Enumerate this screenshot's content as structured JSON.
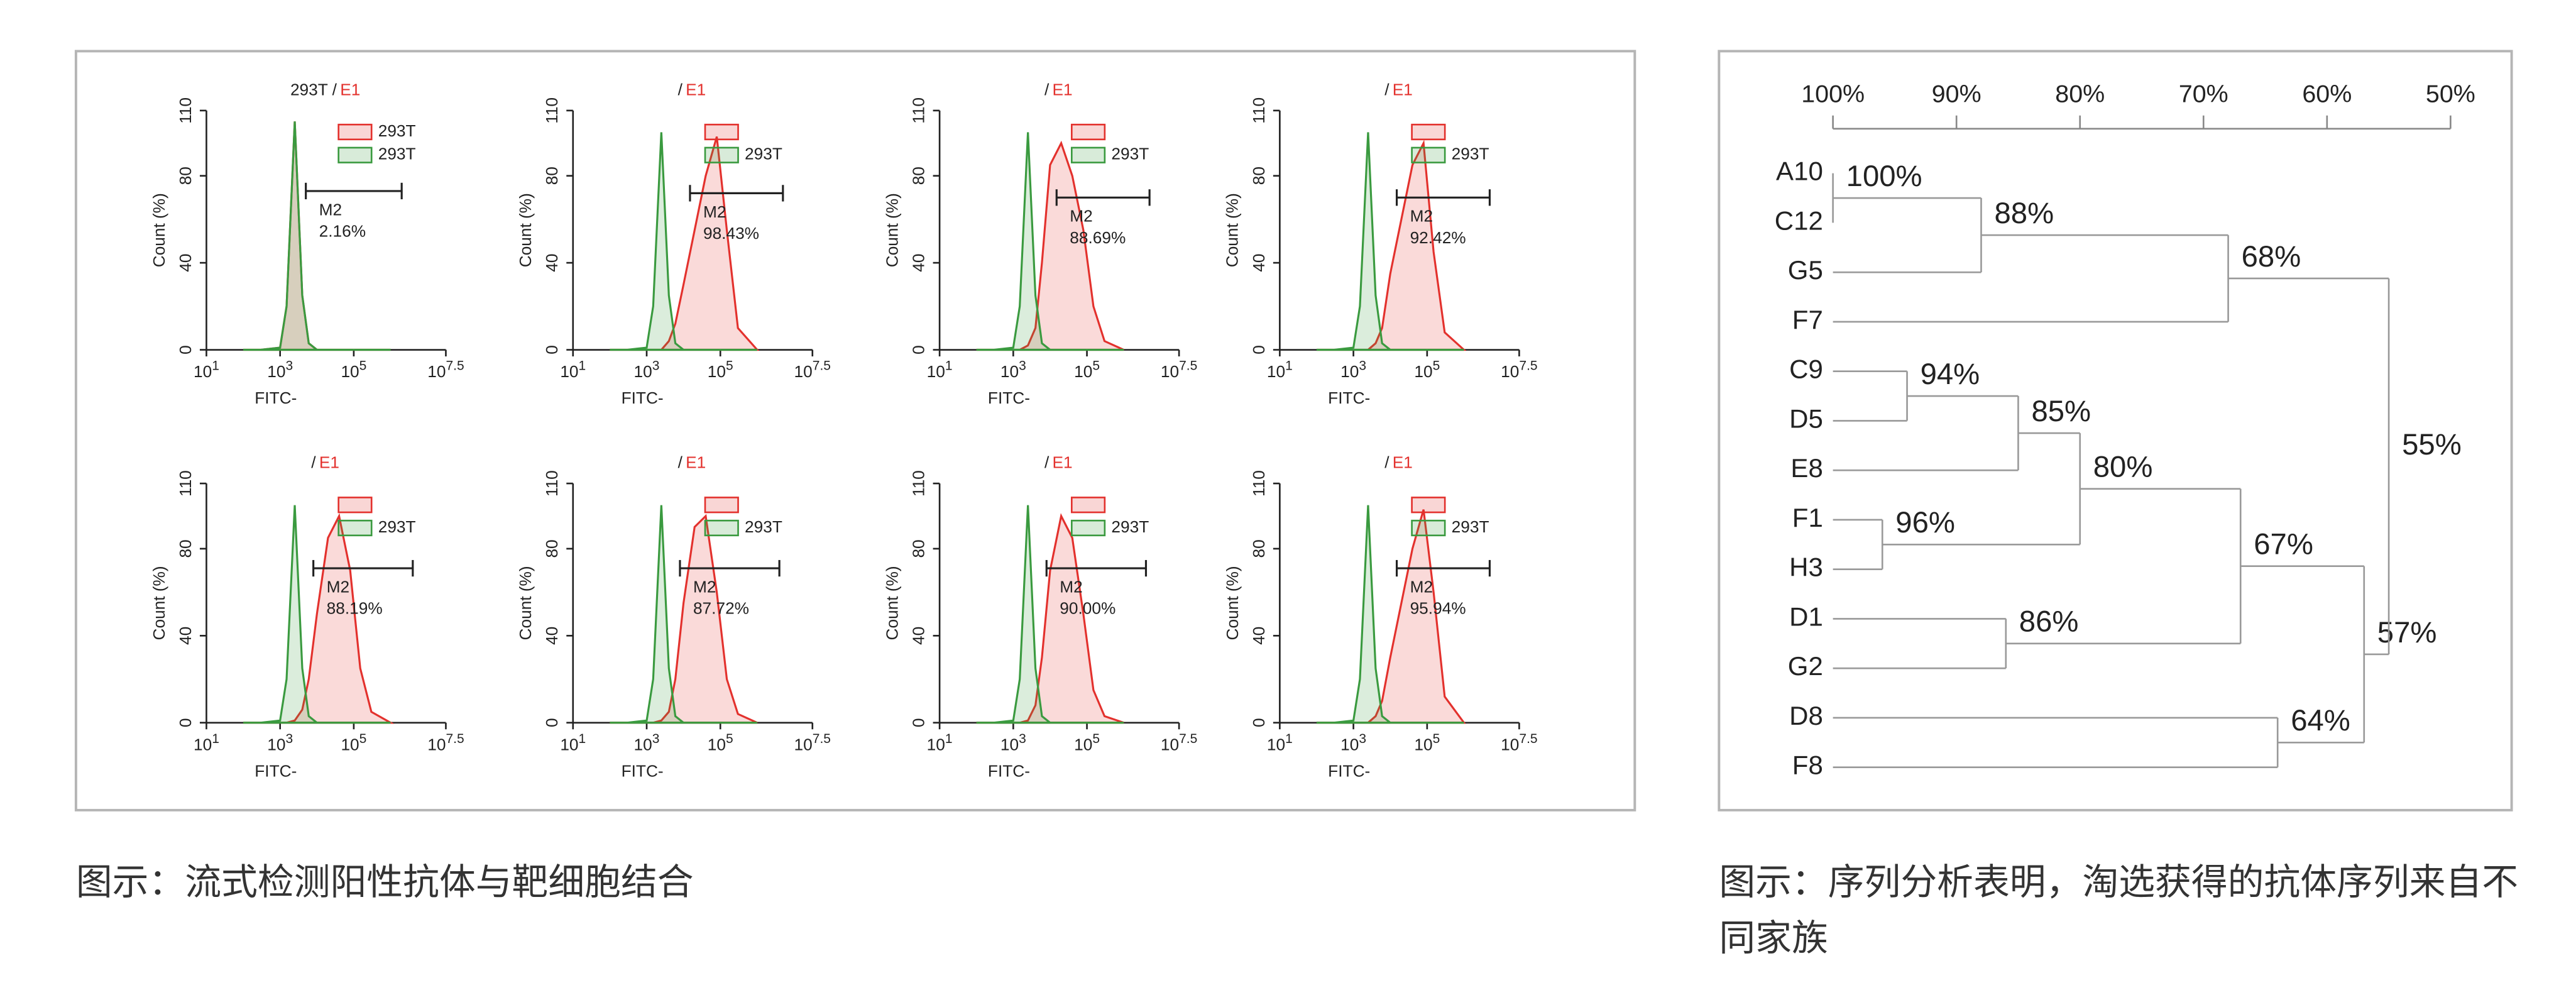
{
  "chart_data": [
    {
      "type": "histogram",
      "title": {
        "text": "293T /",
        "highlight": "E1"
      },
      "y_label": "Count (%)",
      "x_label": "FITC-",
      "log_x": true,
      "xlim": [
        10,
        31622776.6
      ],
      "xticks": [
        {
          "value": 10,
          "label": "10",
          "exponent": "1"
        },
        {
          "value": 1000,
          "label": "10",
          "exponent": "3"
        },
        {
          "value": 100000,
          "label": "10",
          "exponent": "5"
        },
        {
          "value": 31622776.6,
          "label": "10",
          "exponent": "7.5"
        }
      ],
      "ylim": [
        0,
        110
      ],
      "yticks": [
        0,
        40,
        80,
        110
      ],
      "x": [
        100,
        300,
        1000,
        1500,
        2500,
        4000,
        6000,
        10000,
        20000,
        40000,
        80000,
        150000,
        300000,
        1000000
      ],
      "series": [
        {
          "name": "293T",
          "color": "#e3312d",
          "values": [
            0,
            0,
            1,
            20,
            105,
            25,
            3,
            0,
            0,
            0,
            0,
            0,
            0,
            0
          ]
        },
        {
          "name": "293T",
          "color": "#3a9a3f",
          "values": [
            0,
            0,
            1,
            20,
            105,
            25,
            3,
            0,
            0,
            0,
            0,
            0,
            0,
            0
          ]
        }
      ],
      "gate": {
        "name": "M2",
        "x": [
          5000,
          2000000
        ],
        "y": 73,
        "value": 2.16,
        "value_label": "2.16%"
      }
    },
    {
      "type": "histogram",
      "title": {
        "text": "/",
        "highlight": "E1"
      },
      "y_label": "Count (%)",
      "x_label": "FITC-",
      "log_x": true,
      "xlim": [
        10,
        31622776.6
      ],
      "xticks": [
        {
          "value": 10,
          "label": "10",
          "exponent": "1"
        },
        {
          "value": 1000,
          "label": "10",
          "exponent": "3"
        },
        {
          "value": 100000,
          "label": "10",
          "exponent": "5"
        },
        {
          "value": 31622776.6,
          "label": "10",
          "exponent": "7.5"
        }
      ],
      "ylim": [
        0,
        110
      ],
      "yticks": [
        0,
        40,
        80,
        110
      ],
      "x": [
        100,
        300,
        1000,
        1500,
        2500,
        4000,
        6000,
        10000,
        20000,
        40000,
        80000,
        150000,
        300000,
        1000000
      ],
      "series": [
        {
          "name": null,
          "color": "#e3312d",
          "values": [
            0,
            0,
            0,
            0,
            0,
            4,
            12,
            30,
            55,
            80,
            98,
            55,
            10,
            0
          ]
        },
        {
          "name": "293T",
          "color": "#3a9a3f",
          "values": [
            0,
            0,
            1,
            20,
            100,
            25,
            3,
            0,
            0,
            0,
            0,
            0,
            0,
            0
          ]
        }
      ],
      "gate": {
        "name": "M2",
        "x": [
          15000,
          5000000
        ],
        "y": 72,
        "value": 98.43,
        "value_label": "98.43%"
      }
    },
    {
      "type": "histogram",
      "title": {
        "text": "/",
        "highlight": "E1"
      },
      "y_label": "Count (%)",
      "x_label": "FITC-",
      "log_x": true,
      "xlim": [
        10,
        31622776.6
      ],
      "xticks": [
        {
          "value": 10,
          "label": "10",
          "exponent": "1"
        },
        {
          "value": 1000,
          "label": "10",
          "exponent": "3"
        },
        {
          "value": 100000,
          "label": "10",
          "exponent": "5"
        },
        {
          "value": 31622776.6,
          "label": "10",
          "exponent": "7.5"
        }
      ],
      "ylim": [
        0,
        110
      ],
      "yticks": [
        0,
        40,
        80,
        110
      ],
      "x": [
        100,
        300,
        1000,
        1500,
        2500,
        4000,
        6000,
        10000,
        20000,
        40000,
        80000,
        150000,
        300000,
        1000000
      ],
      "series": [
        {
          "name": null,
          "color": "#e3312d",
          "values": [
            0,
            0,
            0,
            0,
            2,
            10,
            40,
            85,
            95,
            80,
            55,
            20,
            4,
            0
          ]
        },
        {
          "name": "293T",
          "color": "#3a9a3f",
          "values": [
            0,
            0,
            1,
            20,
            100,
            25,
            3,
            0,
            0,
            0,
            0,
            0,
            0,
            0
          ]
        }
      ],
      "gate": {
        "name": "M2",
        "x": [
          15000,
          5000000
        ],
        "y": 70,
        "value": 88.69,
        "value_label": "88.69%"
      }
    },
    {
      "type": "histogram",
      "title": {
        "text": "/",
        "highlight": "E1"
      },
      "y_label": "Count (%)",
      "x_label": "FITC-",
      "log_x": true,
      "xlim": [
        10,
        31622776.6
      ],
      "xticks": [
        {
          "value": 10,
          "label": "10",
          "exponent": "1"
        },
        {
          "value": 1000,
          "label": "10",
          "exponent": "3"
        },
        {
          "value": 100000,
          "label": "10",
          "exponent": "5"
        },
        {
          "value": 31622776.6,
          "label": "10",
          "exponent": "7.5"
        }
      ],
      "ylim": [
        0,
        110
      ],
      "yticks": [
        0,
        40,
        80,
        110
      ],
      "x": [
        100,
        300,
        1000,
        1500,
        2500,
        4000,
        6000,
        10000,
        20000,
        40000,
        80000,
        150000,
        300000,
        1000000
      ],
      "series": [
        {
          "name": null,
          "color": "#e3312d",
          "values": [
            0,
            0,
            0,
            0,
            0,
            3,
            10,
            35,
            60,
            85,
            95,
            45,
            8,
            0
          ]
        },
        {
          "name": "293T",
          "color": "#3a9a3f",
          "values": [
            0,
            0,
            1,
            20,
            100,
            25,
            3,
            0,
            0,
            0,
            0,
            0,
            0,
            0
          ]
        }
      ],
      "gate": {
        "name": "M2",
        "x": [
          15000,
          5000000
        ],
        "y": 70,
        "value": 92.42,
        "value_label": "92.42%"
      }
    },
    {
      "type": "histogram",
      "title": {
        "text": "/",
        "highlight": "E1"
      },
      "y_label": "Count (%)",
      "x_label": "FITC-",
      "log_x": true,
      "xlim": [
        10,
        31622776.6
      ],
      "xticks": [
        {
          "value": 10,
          "label": "10",
          "exponent": "1"
        },
        {
          "value": 1000,
          "label": "10",
          "exponent": "3"
        },
        {
          "value": 100000,
          "label": "10",
          "exponent": "5"
        },
        {
          "value": 31622776.6,
          "label": "10",
          "exponent": "7.5"
        }
      ],
      "ylim": [
        0,
        110
      ],
      "yticks": [
        0,
        40,
        80,
        110
      ],
      "x": [
        100,
        300,
        1000,
        1500,
        2500,
        4000,
        6000,
        10000,
        20000,
        40000,
        80000,
        150000,
        300000,
        1000000
      ],
      "series": [
        {
          "name": null,
          "color": "#e3312d",
          "values": [
            0,
            0,
            0,
            0,
            1,
            6,
            20,
            50,
            85,
            95,
            70,
            25,
            5,
            0
          ]
        },
        {
          "name": "293T",
          "color": "#3a9a3f",
          "values": [
            0,
            0,
            1,
            20,
            100,
            25,
            3,
            0,
            0,
            0,
            0,
            0,
            0,
            0
          ]
        }
      ],
      "gate": {
        "name": "M2",
        "x": [
          8000,
          4000000
        ],
        "y": 71,
        "value": 88.19,
        "value_label": "88.19%"
      }
    },
    {
      "type": "histogram",
      "title": {
        "text": "/",
        "highlight": "E1"
      },
      "y_label": "Count (%)",
      "x_label": "FITC-",
      "log_x": true,
      "xlim": [
        10,
        31622776.6
      ],
      "xticks": [
        {
          "value": 10,
          "label": "10",
          "exponent": "1"
        },
        {
          "value": 1000,
          "label": "10",
          "exponent": "3"
        },
        {
          "value": 100000,
          "label": "10",
          "exponent": "5"
        },
        {
          "value": 31622776.6,
          "label": "10",
          "exponent": "7.5"
        }
      ],
      "ylim": [
        0,
        110
      ],
      "yticks": [
        0,
        40,
        80,
        110
      ],
      "x": [
        100,
        300,
        1000,
        1500,
        2500,
        4000,
        6000,
        10000,
        20000,
        40000,
        80000,
        150000,
        300000,
        1000000
      ],
      "series": [
        {
          "name": null,
          "color": "#e3312d",
          "values": [
            0,
            0,
            0,
            0,
            1,
            5,
            20,
            55,
            90,
            95,
            60,
            20,
            4,
            0
          ]
        },
        {
          "name": "293T",
          "color": "#3a9a3f",
          "values": [
            0,
            0,
            1,
            20,
            100,
            25,
            3,
            0,
            0,
            0,
            0,
            0,
            0,
            0
          ]
        }
      ],
      "gate": {
        "name": "M2",
        "x": [
          8000,
          4000000
        ],
        "y": 71,
        "value": 87.72,
        "value_label": "87.72%"
      }
    },
    {
      "type": "histogram",
      "title": {
        "text": "/",
        "highlight": "E1"
      },
      "y_label": "Count (%)",
      "x_label": "FITC-",
      "log_x": true,
      "xlim": [
        10,
        31622776.6
      ],
      "xticks": [
        {
          "value": 10,
          "label": "10",
          "exponent": "1"
        },
        {
          "value": 1000,
          "label": "10",
          "exponent": "3"
        },
        {
          "value": 100000,
          "label": "10",
          "exponent": "5"
        },
        {
          "value": 31622776.6,
          "label": "10",
          "exponent": "7.5"
        }
      ],
      "ylim": [
        0,
        110
      ],
      "yticks": [
        0,
        40,
        80,
        110
      ],
      "x": [
        100,
        300,
        1000,
        1500,
        2500,
        4000,
        6000,
        10000,
        20000,
        40000,
        80000,
        150000,
        300000,
        1000000
      ],
      "series": [
        {
          "name": null,
          "color": "#e3312d",
          "values": [
            0,
            0,
            0,
            0,
            1,
            8,
            30,
            70,
            95,
            85,
            50,
            15,
            3,
            0
          ]
        },
        {
          "name": "293T",
          "color": "#3a9a3f",
          "values": [
            0,
            0,
            1,
            20,
            100,
            25,
            3,
            0,
            0,
            0,
            0,
            0,
            0,
            0
          ]
        }
      ],
      "gate": {
        "name": "M2",
        "x": [
          8000,
          4000000
        ],
        "y": 71,
        "value": 90.0,
        "value_label": "90.00%"
      }
    },
    {
      "type": "histogram",
      "title": {
        "text": "/",
        "highlight": "E1"
      },
      "y_label": "Count (%)",
      "x_label": "FITC-",
      "log_x": true,
      "xlim": [
        10,
        31622776.6
      ],
      "xticks": [
        {
          "value": 10,
          "label": "10",
          "exponent": "1"
        },
        {
          "value": 1000,
          "label": "10",
          "exponent": "3"
        },
        {
          "value": 100000,
          "label": "10",
          "exponent": "5"
        },
        {
          "value": 31622776.6,
          "label": "10",
          "exponent": "7.5"
        }
      ],
      "ylim": [
        0,
        110
      ],
      "yticks": [
        0,
        40,
        80,
        110
      ],
      "x": [
        100,
        300,
        1000,
        1500,
        2500,
        4000,
        6000,
        10000,
        20000,
        40000,
        80000,
        150000,
        300000,
        1000000
      ],
      "series": [
        {
          "name": null,
          "color": "#e3312d",
          "values": [
            0,
            0,
            0,
            0,
            0,
            3,
            10,
            30,
            55,
            80,
            98,
            60,
            12,
            0
          ]
        },
        {
          "name": "293T",
          "color": "#3a9a3f",
          "values": [
            0,
            0,
            1,
            20,
            100,
            25,
            3,
            0,
            0,
            0,
            0,
            0,
            0,
            0
          ]
        }
      ],
      "gate": {
        "name": "M2",
        "x": [
          15000,
          5000000
        ],
        "y": 71,
        "value": 95.94,
        "value_label": "95.94%"
      }
    },
    {
      "type": "dendrogram",
      "xlim": [
        100,
        50
      ],
      "xticks": [
        {
          "value": 100,
          "label": "100%"
        },
        {
          "value": 90,
          "label": "90%"
        },
        {
          "value": 80,
          "label": "80%"
        },
        {
          "value": 70,
          "label": "70%"
        },
        {
          "value": 60,
          "label": "60%"
        },
        {
          "value": 50,
          "label": "50%"
        }
      ],
      "leaves": [
        "A10",
        "C12",
        "G5",
        "F7",
        "C9",
        "D5",
        "E8",
        "F1",
        "H3",
        "D1",
        "G2",
        "D8",
        "F8"
      ],
      "nodes": [
        {
          "leaves": [
            0,
            1
          ],
          "nodes": [],
          "value": 100,
          "label": "100%"
        },
        {
          "leaves": [
            2
          ],
          "nodes": [
            0
          ],
          "value": 88,
          "label": "88%"
        },
        {
          "leaves": [
            3
          ],
          "nodes": [
            1
          ],
          "value": 68,
          "label": "68%"
        },
        {
          "leaves": [
            4,
            5
          ],
          "nodes": [],
          "value": 94,
          "label": "94%"
        },
        {
          "leaves": [
            6
          ],
          "nodes": [
            3
          ],
          "value": 85,
          "label": "85%"
        },
        {
          "leaves": [
            7,
            8
          ],
          "nodes": [],
          "value": 96,
          "label": "96%"
        },
        {
          "leaves": [],
          "nodes": [
            4,
            5
          ],
          "value": 80,
          "label": "80%"
        },
        {
          "leaves": [
            9,
            10
          ],
          "nodes": [],
          "value": 86,
          "label": "86%"
        },
        {
          "leaves": [],
          "nodes": [
            6,
            7
          ],
          "value": 67,
          "label": "67%"
        },
        {
          "leaves": [
            11,
            12
          ],
          "nodes": [],
          "value": 64,
          "label": "64%"
        },
        {
          "leaves": [],
          "nodes": [
            8,
            9
          ],
          "value": 57,
          "label": "57%"
        },
        {
          "leaves": [],
          "nodes": [
            2,
            10
          ],
          "value": 55,
          "label": "55%"
        }
      ]
    }
  ],
  "captions": [
    "图示：流式检测阳性抗体与靶细胞结合",
    "图示：序列分析表明，淘选获得的抗体序列来自不同家族"
  ]
}
